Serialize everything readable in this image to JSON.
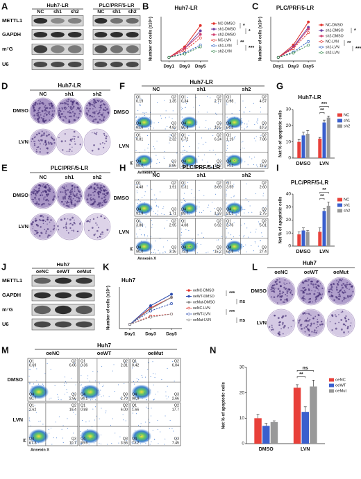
{
  "panel_a": {
    "letter": "A",
    "groups": [
      {
        "label": "Huh7-LR",
        "lanes": [
          "NC",
          "sh1",
          "sh2"
        ]
      },
      {
        "label": "PLC/PRF/5-LR",
        "lanes": [
          "NC",
          "sh1",
          "sh2"
        ]
      }
    ],
    "rows": [
      "METTL1",
      "GAPDH",
      "m⁷G",
      "U6"
    ]
  },
  "panel_d": {
    "letter": "D",
    "title": "Huh7-LR",
    "columns": [
      "NC",
      "sh1",
      "sh2"
    ],
    "rows": [
      "DMSO",
      "LVN"
    ]
  },
  "panel_e": {
    "letter": "E",
    "title": "PLC/PRF/5-LR",
    "columns": [
      "NC",
      "sh1",
      "sh2"
    ],
    "rows": [
      "DMSO",
      "LVN"
    ]
  },
  "panel_f": {
    "letter": "F",
    "title": "Huh7-LR",
    "columns": [
      "NC",
      "sh1",
      "sh2"
    ],
    "rows": [
      "DMSO",
      "LVN"
    ],
    "quadrant_names": [
      "Q1",
      "Q2",
      "Q3",
      "Q4"
    ],
    "x_label": "Annexin X",
    "y_label": "PI",
    "quadrants": [
      [
        [
          "0.19",
          "1.35",
          "4.83",
          "93.6"
        ],
        [
          "0.34",
          "2.77",
          "10.5",
          "86.4"
        ],
        [
          "0.98",
          "4.57",
          "10.3",
          "84.2"
        ]
      ],
      [
        [
          "0.81",
          "2.32",
          "8.86",
          "88.0"
        ],
        [
          "0.72",
          "6.24",
          "17.2",
          "75.8"
        ],
        [
          "1.19",
          "7.86",
          "16.8",
          "74.1"
        ]
      ]
    ]
  },
  "panel_h": {
    "letter": "H",
    "title": "PLC/PRF/5-LR",
    "columns": [
      "NC",
      "sh1",
      "sh2"
    ],
    "rows": [
      "DMSO",
      "LVN"
    ],
    "quadrant_names": [
      "Q1",
      "Q2",
      "Q3",
      "Q4"
    ],
    "x_label": "Annexin X",
    "y_label": "PI",
    "quadrants": [
      [
        [
          "4.48",
          "1.91",
          "1.71",
          "91.9"
        ],
        [
          "5.31",
          "3.69",
          "1.33",
          "89.7"
        ],
        [
          "3.55",
          "2.60",
          "2.75",
          "91.1"
        ]
      ],
      [
        [
          "3.86",
          "2.95",
          "3.16",
          "90.0"
        ],
        [
          "4.08",
          "6.92",
          "15.2",
          "73.8"
        ],
        [
          "3.76",
          "5.01",
          "27.4",
          "64.8"
        ]
      ]
    ]
  },
  "panel_j": {
    "letter": "J",
    "groups": [
      {
        "label": "Huh7",
        "lanes": [
          "oeNC",
          "oeWT",
          "oeMut"
        ]
      }
    ],
    "rows": [
      "METTL1",
      "GAPDH",
      "m⁷G",
      "U6"
    ]
  },
  "panel_l": {
    "letter": "L",
    "title": "Huh7",
    "columns": [
      "oeNC",
      "oeWT",
      "oeMut"
    ],
    "rows": [
      "DMSO",
      "LVN"
    ]
  },
  "panel_m": {
    "letter": "M",
    "title": "Huh7",
    "columns": [
      "oeNC",
      "oeWT",
      "oeMut"
    ],
    "rows": [
      "DMSO",
      "LVN"
    ],
    "quadrant_names": [
      "Q1",
      "Q2",
      "Q3",
      "Q4"
    ],
    "x_label": "Annexin X",
    "y_label": "PI",
    "quadrants": [
      [
        [
          "0.69",
          "6.06",
          "2.56",
          "90.7"
        ],
        [
          "0.36",
          "2.81",
          "2.70",
          "94.1"
        ],
        [
          "0.42",
          "6.04",
          "2.66",
          "90.9"
        ]
      ],
      [
        [
          "2.62",
          "19.4",
          "10.7",
          "67.3"
        ],
        [
          "0.88",
          "6.00",
          "3.56",
          "89.6"
        ],
        [
          "1.66",
          "17.7",
          "7.45",
          "73.2"
        ]
      ]
    ]
  },
  "chart_data": [
    {
      "letter": "B",
      "type": "line",
      "title": "Huh7-LR",
      "y_label": "Number of cells (x10⁴)",
      "categories": [
        "Day1",
        "Day3",
        "Day5"
      ],
      "ylim": [
        0,
        25
      ],
      "series": [
        {
          "name": "NC-DMSO",
          "color": "#e0302a",
          "dash": false,
          "values": [
            2,
            8,
            20
          ]
        },
        {
          "name": "sh1-DMSO",
          "color": "#6c3fa0",
          "dash": false,
          "values": [
            2,
            7,
            17
          ]
        },
        {
          "name": "sh2-DMSO",
          "color": "#d04070",
          "dash": false,
          "values": [
            2,
            7,
            15
          ]
        },
        {
          "name": "NC-LVN",
          "color": "#e0302a",
          "dash": true,
          "values": [
            2,
            6,
            13
          ]
        },
        {
          "name": "sh1-LVN",
          "color": "#2f5fc0",
          "dash": true,
          "values": [
            2,
            4.5,
            9
          ]
        },
        {
          "name": "sh2-LVN",
          "color": "#3a8a50",
          "dash": true,
          "values": [
            2,
            4,
            8
          ]
        }
      ],
      "annotations": [
        "*",
        "*",
        "**",
        "***"
      ]
    },
    {
      "letter": "C",
      "type": "line",
      "title": "PLC/PRF/5-LR",
      "y_label": "Number of cells (x10⁴)",
      "categories": [
        "Day1",
        "Day3",
        "Day5"
      ],
      "ylim": [
        0,
        25
      ],
      "series": [
        {
          "name": "NC-DMSO",
          "color": "#e0302a",
          "dash": false,
          "values": [
            2,
            9,
            22
          ]
        },
        {
          "name": "sh1-DMSO",
          "color": "#6c3fa0",
          "dash": false,
          "values": [
            2,
            8,
            19
          ]
        },
        {
          "name": "sh2-DMSO",
          "color": "#d04070",
          "dash": false,
          "values": [
            2,
            7.5,
            18
          ]
        },
        {
          "name": "NC-LVN",
          "color": "#e0302a",
          "dash": true,
          "values": [
            2,
            7,
            16
          ]
        },
        {
          "name": "sh1-LVN",
          "color": "#2f5fc0",
          "dash": true,
          "values": [
            2,
            5,
            11
          ]
        },
        {
          "name": "sh2-LVN",
          "color": "#3a8a50",
          "dash": true,
          "values": [
            2,
            4.5,
            9
          ]
        }
      ],
      "annotations": [
        "*",
        "**",
        "***"
      ]
    },
    {
      "letter": "G",
      "type": "bar",
      "title": "Huh7-LR",
      "y_label": "Net % of apoptotic cells",
      "categories": [
        "DMSO",
        "LVN"
      ],
      "ylim": [
        0,
        30
      ],
      "yticks": [
        0,
        10,
        20,
        30
      ],
      "series": [
        {
          "name": "NC",
          "color": "#e8403a",
          "values": [
            10,
            12
          ],
          "errors": [
            1.5,
            0.8
          ]
        },
        {
          "name": "sh1",
          "color": "#3a5fcd",
          "values": [
            14,
            22
          ],
          "errors": [
            2,
            1.5
          ]
        },
        {
          "name": "sh2",
          "color": "#999999",
          "values": [
            15,
            25
          ],
          "errors": [
            2,
            1
          ]
        }
      ],
      "annotations": [
        "**",
        "***"
      ]
    },
    {
      "letter": "I",
      "type": "bar",
      "title": "PLC/PRF/5-LR",
      "y_label": "Net % of apoptotic cells",
      "categories": [
        "DMSO",
        "LVN"
      ],
      "ylim": [
        0,
        40
      ],
      "yticks": [
        0,
        10,
        20,
        30,
        40
      ],
      "series": [
        {
          "name": "NC",
          "color": "#e8403a",
          "values": [
            9,
            11
          ],
          "errors": [
            2,
            3
          ]
        },
        {
          "name": "sh1",
          "color": "#3a5fcd",
          "values": [
            12,
            27
          ],
          "errors": [
            2,
            2
          ]
        },
        {
          "name": "sh2",
          "color": "#999999",
          "values": [
            11,
            31
          ],
          "errors": [
            1,
            3
          ]
        }
      ],
      "annotations": [
        "**",
        "**"
      ]
    },
    {
      "letter": "K",
      "type": "line",
      "title": "Huh7",
      "y_label": "Number of cells (x10⁴)",
      "categories": [
        "Day1",
        "Day3",
        "Day5"
      ],
      "ylim": [
        0,
        40
      ],
      "series": [
        {
          "name": "oeNC-DMSO",
          "color": "#e0302a",
          "dash": false,
          "values": [
            4,
            20,
            30
          ]
        },
        {
          "name": "oeWT-DMSO",
          "color": "#2f4fb0",
          "dash": false,
          "values": [
            4,
            22,
            33
          ]
        },
        {
          "name": "oeMut-DMSO",
          "color": "#888888",
          "dash": false,
          "values": [
            4,
            19,
            30
          ]
        },
        {
          "name": "oeNC-LVN",
          "color": "#e0302a",
          "dash": true,
          "values": [
            4,
            12,
            14
          ]
        },
        {
          "name": "oeWT-LVN",
          "color": "#2f4fb0",
          "dash": true,
          "values": [
            4,
            17,
            24
          ]
        },
        {
          "name": "oeMut-LVN",
          "color": "#888888",
          "dash": true,
          "values": [
            4,
            11,
            14
          ]
        }
      ],
      "annotations": [
        "***",
        "ns",
        "***",
        "ns"
      ]
    },
    {
      "letter": "N",
      "type": "bar",
      "y_label": "Net % of apoptotic cells",
      "categories": [
        "DMSO",
        "LVN"
      ],
      "ylim": [
        0,
        30
      ],
      "yticks": [
        0,
        10,
        20,
        30
      ],
      "series": [
        {
          "name": "oeNC",
          "color": "#e8403a",
          "values": [
            10,
            22
          ],
          "errors": [
            1.5,
            1.2
          ]
        },
        {
          "name": "oeWT",
          "color": "#3a5fcd",
          "values": [
            7,
            12.5
          ],
          "errors": [
            1,
            2
          ]
        },
        {
          "name": "oeMut",
          "color": "#999999",
          "values": [
            8.5,
            22.5
          ],
          "errors": [
            0.5,
            2.5
          ]
        }
      ],
      "annotations": [
        "**",
        "ns"
      ]
    }
  ]
}
